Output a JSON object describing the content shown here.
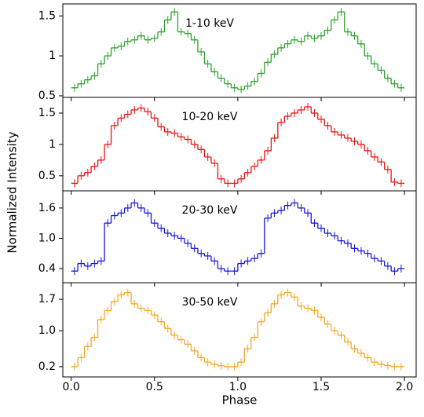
{
  "chart_data": [
    {
      "type": "step",
      "label": "1-10 keV",
      "color": "#2ca02c",
      "ylabel": "Normalized Intensity",
      "x": [
        0.02,
        0.06,
        0.1,
        0.14,
        0.18,
        0.22,
        0.26,
        0.3,
        0.34,
        0.38,
        0.42,
        0.46,
        0.5,
        0.54,
        0.58,
        0.62,
        0.66,
        0.7,
        0.74,
        0.78,
        0.82,
        0.86,
        0.9,
        0.94,
        0.98,
        1.02,
        1.06,
        1.1,
        1.14,
        1.18,
        1.22,
        1.26,
        1.3,
        1.34,
        1.38,
        1.42,
        1.46,
        1.5,
        1.54,
        1.58,
        1.62,
        1.66,
        1.7,
        1.74,
        1.78,
        1.82,
        1.86,
        1.9,
        1.94,
        1.98
      ],
      "values": [
        0.6,
        0.65,
        0.7,
        0.75,
        0.9,
        1.0,
        1.1,
        1.12,
        1.18,
        1.2,
        1.25,
        1.2,
        1.22,
        1.3,
        1.45,
        1.55,
        1.3,
        1.28,
        1.2,
        1.05,
        0.9,
        0.8,
        0.72,
        0.65,
        0.6,
        0.58,
        0.62,
        0.68,
        0.78,
        0.92,
        1.02,
        1.1,
        1.15,
        1.2,
        1.18,
        1.25,
        1.22,
        1.25,
        1.32,
        1.45,
        1.55,
        1.3,
        1.25,
        1.15,
        1.0,
        0.9,
        0.82,
        0.72,
        0.65,
        0.6
      ],
      "xlim": [
        -0.05,
        2.07
      ],
      "ylim": [
        0.48,
        1.65
      ],
      "yticks": [
        0.5,
        1,
        1.5
      ]
    },
    {
      "type": "step",
      "label": "10-20 keV",
      "color": "#ee1111",
      "x": [
        0.02,
        0.06,
        0.1,
        0.14,
        0.18,
        0.22,
        0.26,
        0.3,
        0.34,
        0.38,
        0.42,
        0.46,
        0.5,
        0.54,
        0.58,
        0.62,
        0.66,
        0.7,
        0.74,
        0.78,
        0.82,
        0.86,
        0.9,
        0.94,
        0.98,
        1.02,
        1.06,
        1.1,
        1.14,
        1.18,
        1.22,
        1.26,
        1.3,
        1.34,
        1.38,
        1.42,
        1.46,
        1.5,
        1.54,
        1.58,
        1.62,
        1.66,
        1.7,
        1.74,
        1.78,
        1.82,
        1.86,
        1.9,
        1.94,
        1.98
      ],
      "values": [
        0.38,
        0.5,
        0.55,
        0.65,
        0.75,
        1.0,
        1.3,
        1.42,
        1.48,
        1.55,
        1.58,
        1.52,
        1.42,
        1.28,
        1.2,
        1.18,
        1.12,
        1.08,
        1.0,
        0.92,
        0.8,
        0.7,
        0.45,
        0.38,
        0.38,
        0.45,
        0.55,
        0.65,
        0.75,
        0.9,
        1.1,
        1.35,
        1.45,
        1.5,
        1.55,
        1.6,
        1.5,
        1.4,
        1.3,
        1.2,
        1.15,
        1.1,
        1.05,
        1.0,
        0.9,
        0.8,
        0.72,
        0.6,
        0.4,
        0.38
      ],
      "xlim": [
        -0.05,
        2.07
      ],
      "ylim": [
        0.26,
        1.75
      ],
      "yticks": [
        0.5,
        1,
        1.5
      ]
    },
    {
      "type": "step",
      "label": "20-30 keV",
      "color": "#1515dd",
      "x": [
        0.02,
        0.06,
        0.1,
        0.14,
        0.18,
        0.22,
        0.26,
        0.3,
        0.34,
        0.38,
        0.42,
        0.46,
        0.5,
        0.54,
        0.58,
        0.62,
        0.66,
        0.7,
        0.74,
        0.78,
        0.82,
        0.86,
        0.9,
        0.94,
        0.98,
        1.02,
        1.06,
        1.1,
        1.14,
        1.18,
        1.22,
        1.26,
        1.3,
        1.34,
        1.38,
        1.42,
        1.46,
        1.5,
        1.54,
        1.58,
        1.62,
        1.66,
        1.7,
        1.74,
        1.78,
        1.82,
        1.86,
        1.9,
        1.94,
        1.98
      ],
      "values": [
        0.35,
        0.5,
        0.45,
        0.5,
        0.55,
        1.3,
        1.45,
        1.5,
        1.6,
        1.7,
        1.6,
        1.5,
        1.3,
        1.2,
        1.1,
        1.05,
        1.0,
        0.9,
        0.8,
        0.7,
        0.65,
        0.55,
        0.4,
        0.35,
        0.35,
        0.5,
        0.55,
        0.6,
        0.7,
        1.4,
        1.5,
        1.55,
        1.65,
        1.7,
        1.6,
        1.5,
        1.3,
        1.2,
        1.1,
        1.05,
        0.95,
        0.9,
        0.8,
        0.75,
        0.7,
        0.6,
        0.55,
        0.45,
        0.35,
        0.4
      ],
      "xlim": [
        -0.05,
        2.07
      ],
      "ylim": [
        0.12,
        1.94
      ],
      "yticks": [
        0.4,
        {
          "value": 1.0,
          "label": "1.0"
        },
        1.6
      ]
    },
    {
      "type": "step",
      "label": "30-50 keV",
      "color": "#f5a623",
      "xlabel": "Phase",
      "x": [
        0.02,
        0.06,
        0.1,
        0.14,
        0.18,
        0.22,
        0.26,
        0.3,
        0.34,
        0.38,
        0.42,
        0.46,
        0.5,
        0.54,
        0.58,
        0.62,
        0.66,
        0.7,
        0.74,
        0.78,
        0.82,
        0.86,
        0.9,
        0.94,
        0.98,
        1.02,
        1.06,
        1.1,
        1.14,
        1.18,
        1.22,
        1.26,
        1.3,
        1.34,
        1.38,
        1.42,
        1.46,
        1.5,
        1.54,
        1.58,
        1.62,
        1.66,
        1.7,
        1.74,
        1.78,
        1.82,
        1.86,
        1.9,
        1.94,
        1.98
      ],
      "values": [
        0.2,
        0.4,
        0.65,
        0.85,
        1.25,
        1.45,
        1.65,
        1.8,
        1.85,
        1.6,
        1.5,
        1.45,
        1.35,
        1.2,
        1.05,
        0.9,
        0.8,
        0.7,
        0.55,
        0.4,
        0.3,
        0.25,
        0.22,
        0.2,
        0.2,
        0.3,
        0.6,
        0.85,
        1.2,
        1.4,
        1.6,
        1.8,
        1.85,
        1.75,
        1.55,
        1.5,
        1.45,
        1.3,
        1.15,
        1.0,
        0.9,
        0.75,
        0.6,
        0.5,
        0.4,
        0.3,
        0.25,
        0.22,
        0.2,
        0.2
      ],
      "xlim": [
        -0.05,
        2.07
      ],
      "ylim": [
        -0.03,
        2.07
      ],
      "yticks": [
        0.2,
        {
          "value": 1.0,
          "label": "1.0"
        },
        1.7
      ],
      "xticks": [
        {
          "value": 0,
          "label": "0.0"
        },
        0.5,
        {
          "value": 1,
          "label": "1.0"
        },
        1.5,
        {
          "value": 2,
          "label": "2.0"
        }
      ]
    }
  ]
}
